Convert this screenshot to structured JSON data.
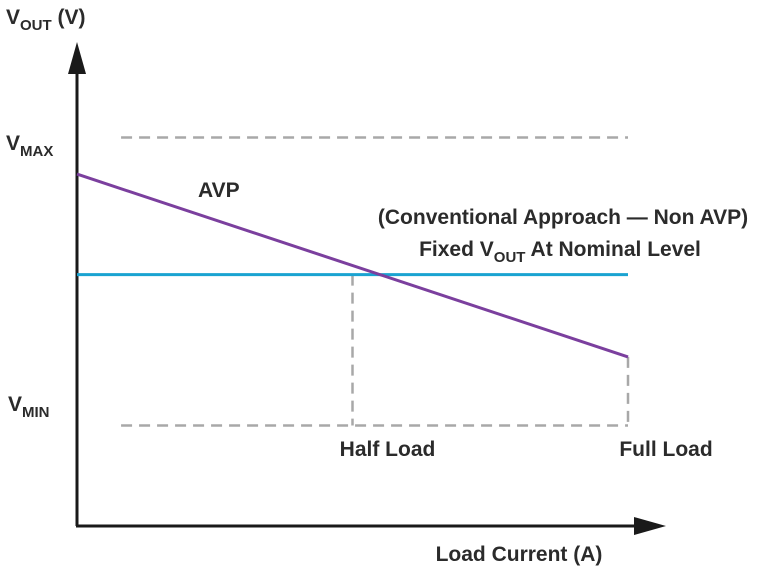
{
  "chart_data": {
    "type": "line",
    "title": "",
    "ylabel": {
      "main": "V",
      "sub": "OUT",
      "suffix": " (V)"
    },
    "xlabel": "Load Current (A)",
    "xlim": [
      0,
      1
    ],
    "ylim": [
      0,
      1
    ],
    "y_levels": {
      "vmax": {
        "main": "V",
        "sub": "MAX",
        "value": 0.85
      },
      "vmin": {
        "main": "V",
        "sub": "MIN",
        "value": 0.22
      },
      "nominal": 0.55
    },
    "x_marks": [
      {
        "label": "Half Load",
        "value": 0.5
      },
      {
        "label": "Full Load",
        "value": 1.0
      }
    ],
    "series": [
      {
        "name": "AVP",
        "color": "#7b3f9e",
        "x": [
          0,
          1
        ],
        "y": [
          0.77,
          0.37
        ]
      },
      {
        "name": "Fixed VOUT",
        "color": "#1aa3d1",
        "x": [
          0,
          1
        ],
        "y": [
          0.55,
          0.55
        ]
      }
    ],
    "annotations": {
      "avp": "AVP",
      "conventional": "(Conventional Approach — Non AVP)",
      "fixed": {
        "pre": "Fixed V",
        "sub": "OUT",
        "post": " At Nominal Level"
      }
    },
    "colors": {
      "axis": "#1a1a1a",
      "guide": "#a8a8a8",
      "text": "#2b2b2b"
    }
  }
}
